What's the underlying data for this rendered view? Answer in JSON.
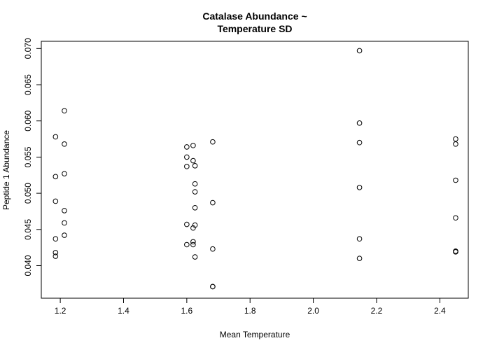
{
  "chart_data": {
    "type": "scatter",
    "title_lines": [
      "Catalase Abundance ~",
      "Temperature SD"
    ],
    "xlabel": "Mean Temperature",
    "ylabel": "Peptide 1 Abundance",
    "xlim": [
      1.14,
      2.49
    ],
    "ylim": [
      0.0355,
      0.071
    ],
    "xticks": [
      1.2,
      1.4,
      1.6,
      1.8,
      2.0,
      2.2,
      2.4
    ],
    "xtick_labels": [
      "1.2",
      "1.4",
      "1.6",
      "1.8",
      "2.0",
      "2.2",
      "2.4"
    ],
    "yticks": [
      0.04,
      0.045,
      0.05,
      0.055,
      0.06,
      0.065,
      0.07
    ],
    "ytick_labels": [
      "0.040",
      "0.045",
      "0.050",
      "0.055",
      "0.060",
      "0.065",
      "0.070"
    ],
    "points": [
      [
        1.185,
        0.0578
      ],
      [
        1.185,
        0.0523
      ],
      [
        1.185,
        0.0489
      ],
      [
        1.185,
        0.0437
      ],
      [
        1.185,
        0.0418
      ],
      [
        1.185,
        0.0413
      ],
      [
        1.213,
        0.0614
      ],
      [
        1.213,
        0.0568
      ],
      [
        1.213,
        0.0527
      ],
      [
        1.213,
        0.0476
      ],
      [
        1.213,
        0.0459
      ],
      [
        1.213,
        0.0442
      ],
      [
        1.6,
        0.0564
      ],
      [
        1.6,
        0.055
      ],
      [
        1.6,
        0.0537
      ],
      [
        1.6,
        0.0457
      ],
      [
        1.6,
        0.0429
      ],
      [
        1.62,
        0.0566
      ],
      [
        1.62,
        0.0545
      ],
      [
        1.62,
        0.0452
      ],
      [
        1.62,
        0.0433
      ],
      [
        1.62,
        0.0429
      ],
      [
        1.626,
        0.0538
      ],
      [
        1.626,
        0.0513
      ],
      [
        1.626,
        0.0502
      ],
      [
        1.626,
        0.048
      ],
      [
        1.626,
        0.0456
      ],
      [
        1.626,
        0.0412
      ],
      [
        1.682,
        0.0571
      ],
      [
        1.682,
        0.0487
      ],
      [
        1.682,
        0.0423
      ],
      [
        1.682,
        0.0371
      ],
      [
        1.682,
        0.0371
      ],
      [
        2.146,
        0.0697
      ],
      [
        2.146,
        0.0597
      ],
      [
        2.146,
        0.057
      ],
      [
        2.146,
        0.0508
      ],
      [
        2.146,
        0.0437
      ],
      [
        2.146,
        0.041
      ],
      [
        2.45,
        0.0575
      ],
      [
        2.45,
        0.0568
      ],
      [
        2.45,
        0.0518
      ],
      [
        2.45,
        0.0466
      ],
      [
        2.45,
        0.042
      ],
      [
        2.45,
        0.0419
      ]
    ]
  }
}
